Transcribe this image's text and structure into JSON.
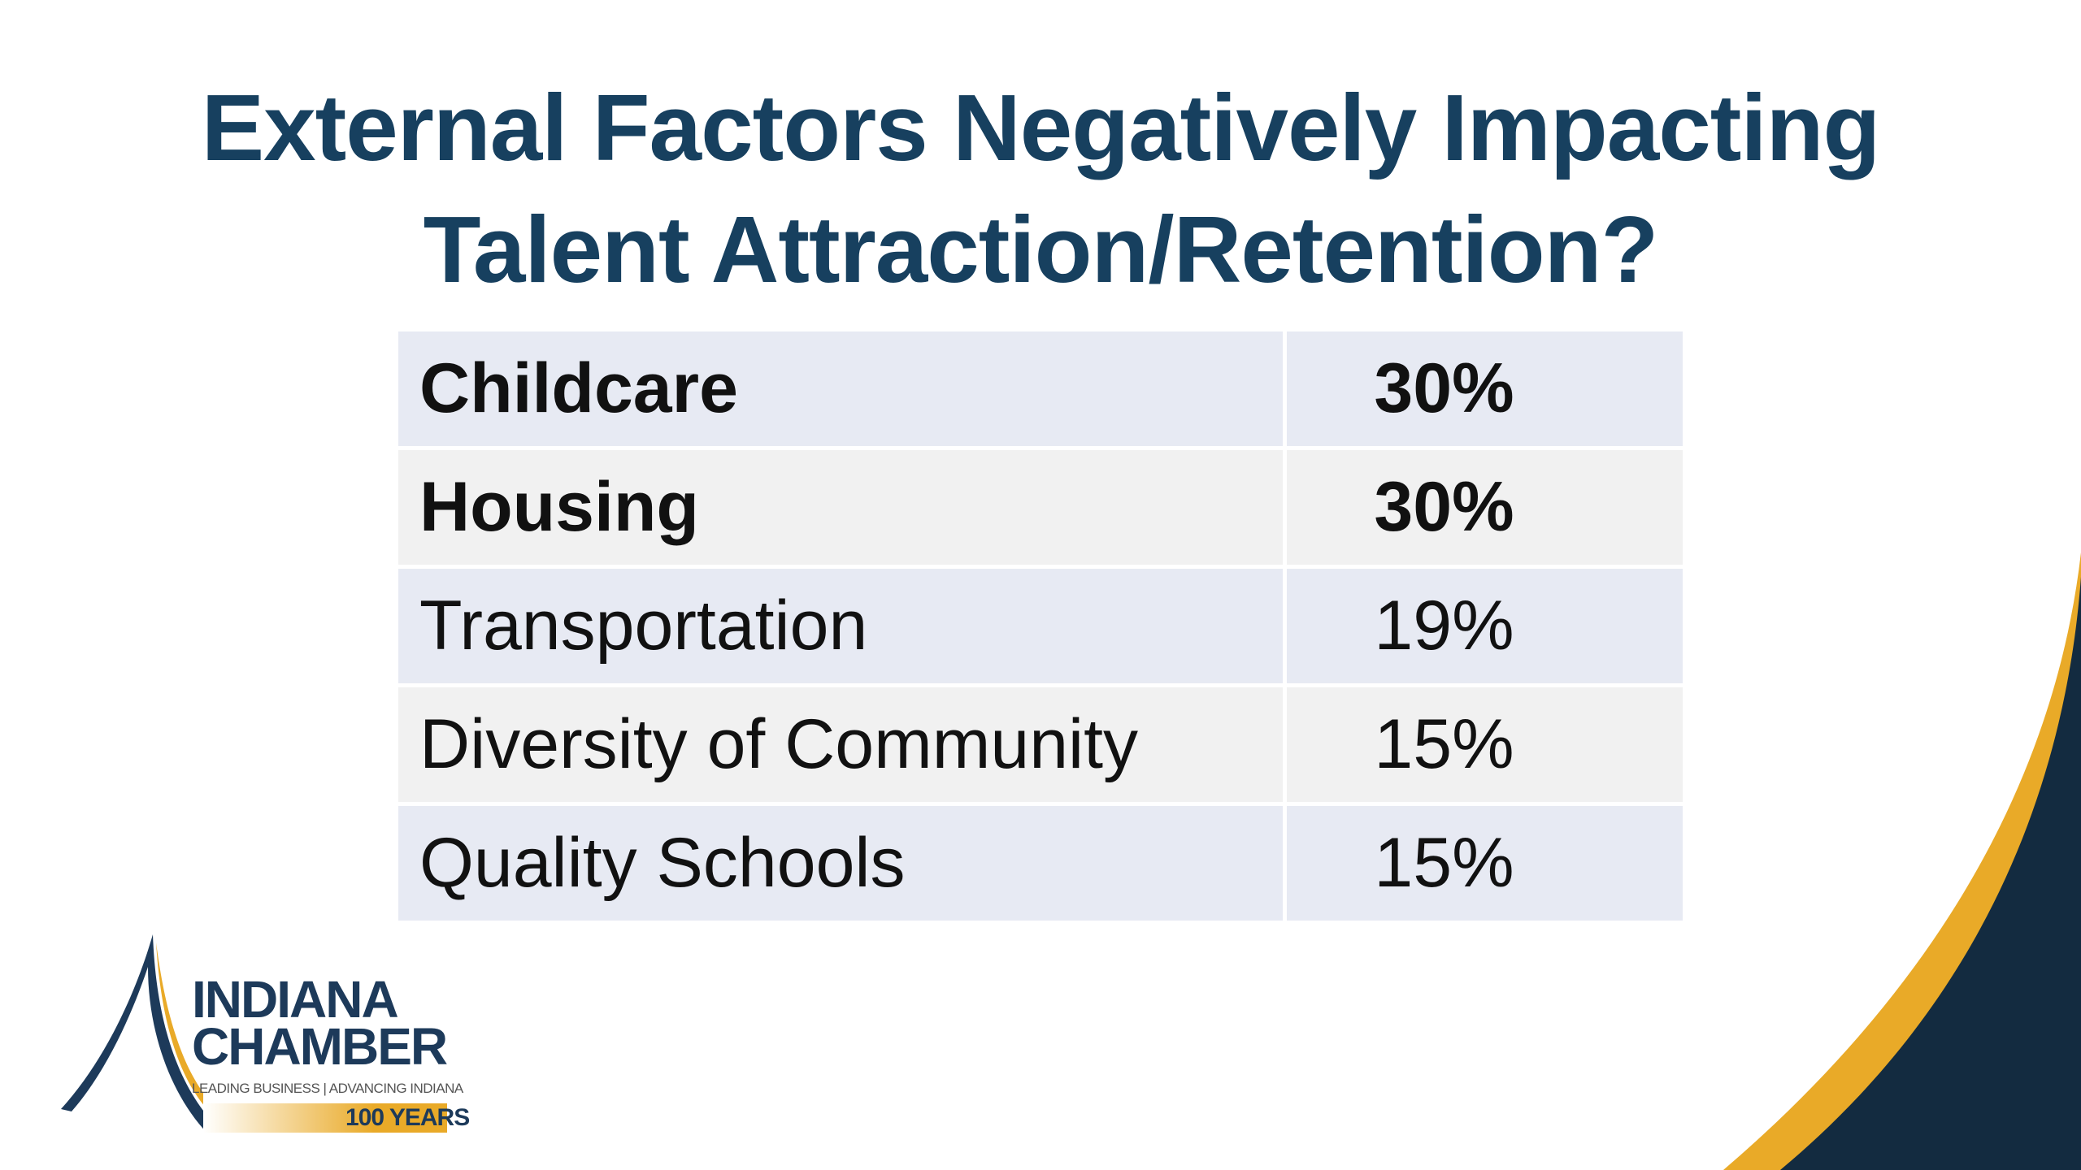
{
  "slide": {
    "title_line1": "External Factors Negatively Impacting",
    "title_line2": "Talent Attraction/Retention?"
  },
  "table": {
    "rows": [
      {
        "label": "Childcare",
        "value": "30%",
        "bold": true
      },
      {
        "label": "Housing",
        "value": "30%",
        "bold": true
      },
      {
        "label": "Transportation",
        "value": "19%",
        "bold": false
      },
      {
        "label": "Diversity of Community",
        "value": "15%",
        "bold": false
      },
      {
        "label": "Quality Schools",
        "value": "15%",
        "bold": false
      }
    ]
  },
  "logo": {
    "line1": "INDIANA",
    "line2": "CHAMBER",
    "tagline": "LEADING BUSINESS | ADVANCING INDIANA",
    "years": "100 YEARS"
  },
  "colors": {
    "title": "#17405f",
    "navy": "#132b40",
    "gold": "#e9aa28",
    "row_blue": "#e7eaf3",
    "row_gray": "#f1f1f1"
  }
}
